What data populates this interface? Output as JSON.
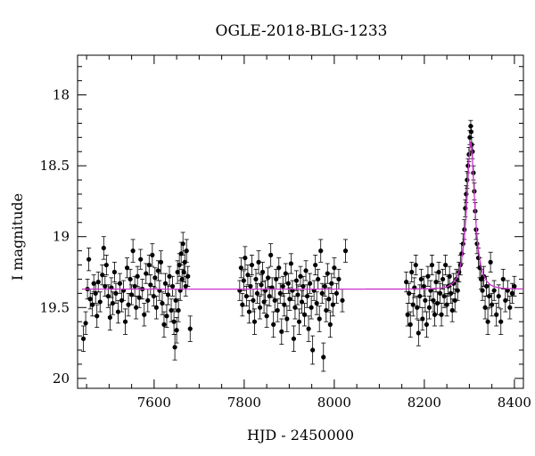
{
  "chart_data": {
    "type": "scatter",
    "title": "OGLE-2018-BLG-1233",
    "xlabel": "HJD - 2450000",
    "ylabel": "I magnitude",
    "xlim": [
      7430,
      8420
    ],
    "ylim": [
      20.07,
      17.72
    ],
    "y_inverted": true,
    "x_ticks": [
      7600,
      7800,
      8000,
      8200,
      8400
    ],
    "y_ticks": [
      18,
      18.5,
      19,
      19.5,
      20
    ],
    "x_tick_labels": [
      "7600",
      "7800",
      "8000",
      "8200",
      "8400"
    ],
    "y_tick_labels": [
      "18",
      "18.5",
      "19",
      "19.5",
      "20"
    ],
    "grid": false,
    "colors": {
      "points": "#000000",
      "model": "#cc33cc"
    },
    "baseline_mag": 19.37,
    "model": {
      "type": "microlensing",
      "t0": 8303,
      "u0": 0.38,
      "tE": 18,
      "fs_frac": 0.9,
      "color": "#cc33cc"
    },
    "series": [
      {
        "points": [
          [
            7443,
            19.72,
            0.09
          ],
          [
            7448,
            19.61,
            0.08
          ],
          [
            7452,
            19.37,
            0.07
          ],
          [
            7455,
            19.16,
            0.08
          ],
          [
            7458,
            19.44,
            0.07
          ],
          [
            7463,
            19.48,
            0.08
          ],
          [
            7466,
            19.33,
            0.06
          ],
          [
            7470,
            19.4,
            0.07
          ],
          [
            7473,
            19.56,
            0.08
          ],
          [
            7476,
            19.32,
            0.07
          ],
          [
            7480,
            19.46,
            0.07
          ],
          [
            7485,
            19.27,
            0.07
          ],
          [
            7488,
            19.08,
            0.08
          ],
          [
            7491,
            19.35,
            0.07
          ],
          [
            7494,
            19.2,
            0.07
          ],
          [
            7498,
            19.42,
            0.08
          ],
          [
            7502,
            19.57,
            0.09
          ],
          [
            7505,
            19.36,
            0.07
          ],
          [
            7508,
            19.47,
            0.08
          ],
          [
            7512,
            19.25,
            0.07
          ],
          [
            7515,
            19.4,
            0.07
          ],
          [
            7520,
            19.53,
            0.08
          ],
          [
            7524,
            19.33,
            0.07
          ],
          [
            7528,
            19.45,
            0.08
          ],
          [
            7532,
            19.38,
            0.07
          ],
          [
            7536,
            19.6,
            0.09
          ],
          [
            7540,
            19.22,
            0.07
          ],
          [
            7543,
            19.48,
            0.08
          ],
          [
            7547,
            19.3,
            0.07
          ],
          [
            7550,
            19.41,
            0.07
          ],
          [
            7553,
            19.1,
            0.08
          ],
          [
            7557,
            19.35,
            0.07
          ],
          [
            7560,
            19.5,
            0.08
          ],
          [
            7563,
            19.28,
            0.07
          ],
          [
            7567,
            19.43,
            0.07
          ],
          [
            7570,
            19.16,
            0.07
          ],
          [
            7574,
            19.37,
            0.07
          ],
          [
            7578,
            19.55,
            0.08
          ],
          [
            7582,
            19.26,
            0.07
          ],
          [
            7586,
            19.45,
            0.08
          ],
          [
            7589,
            19.2,
            0.07
          ],
          [
            7592,
            19.34,
            0.07
          ],
          [
            7596,
            19.13,
            0.08
          ],
          [
            7599,
            19.42,
            0.07
          ],
          [
            7602,
            19.29,
            0.07
          ],
          [
            7605,
            19.5,
            0.08
          ],
          [
            7609,
            19.24,
            0.07
          ],
          [
            7612,
            19.38,
            0.07
          ],
          [
            7615,
            19.18,
            0.08
          ],
          [
            7618,
            19.47,
            0.08
          ],
          [
            7622,
            19.62,
            0.09
          ],
          [
            7625,
            19.33,
            0.07
          ],
          [
            7628,
            19.56,
            0.08
          ],
          [
            7631,
            19.41,
            0.07
          ],
          [
            7634,
            19.28,
            0.07
          ],
          [
            7638,
            19.52,
            0.08
          ],
          [
            7641,
            19.35,
            0.07
          ],
          [
            7644,
            19.6,
            0.09
          ],
          [
            7646,
            19.78,
            0.09
          ],
          [
            7648,
            19.45,
            0.08
          ],
          [
            7650,
            19.66,
            0.09
          ],
          [
            7652,
            19.25,
            0.08
          ],
          [
            7654,
            19.52,
            0.08
          ],
          [
            7656,
            19.2,
            0.08
          ],
          [
            7658,
            19.38,
            0.07
          ],
          [
            7660,
            19.12,
            0.08
          ],
          [
            7662,
            19.3,
            0.07
          ],
          [
            7664,
            19.05,
            0.08
          ],
          [
            7666,
            19.25,
            0.07
          ],
          [
            7668,
            19.18,
            0.08
          ],
          [
            7670,
            19.35,
            0.07
          ],
          [
            7672,
            19.1,
            0.08
          ],
          [
            7675,
            19.28,
            0.07
          ],
          [
            7680,
            19.65,
            0.09
          ],
          [
            7790,
            19.38,
            0.07
          ],
          [
            7793,
            19.22,
            0.07
          ],
          [
            7796,
            19.48,
            0.08
          ],
          [
            7799,
            19.31,
            0.07
          ],
          [
            7802,
            19.15,
            0.08
          ],
          [
            7805,
            19.42,
            0.07
          ],
          [
            7808,
            19.27,
            0.07
          ],
          [
            7811,
            19.53,
            0.08
          ],
          [
            7814,
            19.35,
            0.07
          ],
          [
            7817,
            19.2,
            0.07
          ],
          [
            7820,
            19.45,
            0.08
          ],
          [
            7823,
            19.6,
            0.09
          ],
          [
            7826,
            19.3,
            0.07
          ],
          [
            7829,
            19.4,
            0.07
          ],
          [
            7832,
            19.18,
            0.08
          ],
          [
            7835,
            19.5,
            0.08
          ],
          [
            7838,
            19.34,
            0.07
          ],
          [
            7841,
            19.25,
            0.07
          ],
          [
            7844,
            19.46,
            0.08
          ],
          [
            7847,
            19.38,
            0.07
          ],
          [
            7850,
            19.56,
            0.08
          ],
          [
            7853,
            19.29,
            0.07
          ],
          [
            7856,
            19.42,
            0.07
          ],
          [
            7859,
            19.13,
            0.08
          ],
          [
            7862,
            19.36,
            0.07
          ],
          [
            7865,
            19.62,
            0.09
          ],
          [
            7868,
            19.45,
            0.08
          ],
          [
            7871,
            19.3,
            0.07
          ],
          [
            7874,
            19.52,
            0.08
          ],
          [
            7877,
            19.22,
            0.07
          ],
          [
            7880,
            19.4,
            0.07
          ],
          [
            7883,
            19.67,
            0.09
          ],
          [
            7886,
            19.35,
            0.07
          ],
          [
            7889,
            19.48,
            0.08
          ],
          [
            7892,
            19.26,
            0.07
          ],
          [
            7895,
            19.58,
            0.09
          ],
          [
            7898,
            19.33,
            0.07
          ],
          [
            7901,
            19.44,
            0.08
          ],
          [
            7904,
            19.19,
            0.07
          ],
          [
            7907,
            19.38,
            0.07
          ],
          [
            7910,
            19.72,
            0.09
          ],
          [
            7913,
            19.5,
            0.08
          ],
          [
            7916,
            19.31,
            0.07
          ],
          [
            7919,
            19.41,
            0.07
          ],
          [
            7922,
            19.6,
            0.09
          ],
          [
            7925,
            19.28,
            0.07
          ],
          [
            7928,
            19.46,
            0.08
          ],
          [
            7931,
            19.35,
            0.07
          ],
          [
            7934,
            19.55,
            0.08
          ],
          [
            7937,
            19.24,
            0.07
          ],
          [
            7940,
            19.42,
            0.08
          ],
          [
            7943,
            19.65,
            0.09
          ],
          [
            7946,
            19.33,
            0.07
          ],
          [
            7949,
            19.5,
            0.08
          ],
          [
            7952,
            19.8,
            0.1
          ],
          [
            7955,
            19.38,
            0.07
          ],
          [
            7958,
            19.2,
            0.07
          ],
          [
            7961,
            19.47,
            0.08
          ],
          [
            7964,
            19.3,
            0.07
          ],
          [
            7967,
            19.58,
            0.09
          ],
          [
            7970,
            19.1,
            0.08
          ],
          [
            7973,
            19.4,
            0.07
          ],
          [
            7976,
            19.85,
            0.1
          ],
          [
            7979,
            19.35,
            0.07
          ],
          [
            7982,
            19.52,
            0.08
          ],
          [
            7985,
            19.26,
            0.07
          ],
          [
            7988,
            19.44,
            0.08
          ],
          [
            7991,
            19.62,
            0.09
          ],
          [
            7994,
            19.33,
            0.07
          ],
          [
            7997,
            19.48,
            0.08
          ],
          [
            8000,
            19.22,
            0.07
          ],
          [
            8005,
            19.4,
            0.07
          ],
          [
            8010,
            19.3,
            0.07
          ],
          [
            8018,
            19.45,
            0.08
          ],
          [
            8025,
            19.1,
            0.08
          ],
          [
            8160,
            19.32,
            0.07
          ],
          [
            8163,
            19.55,
            0.08
          ],
          [
            8166,
            19.4,
            0.07
          ],
          [
            8169,
            19.62,
            0.09
          ],
          [
            8172,
            19.25,
            0.07
          ],
          [
            8175,
            19.48,
            0.08
          ],
          [
            8178,
            19.36,
            0.07
          ],
          [
            8181,
            19.2,
            0.07
          ],
          [
            8184,
            19.5,
            0.08
          ],
          [
            8187,
            19.68,
            0.09
          ],
          [
            8190,
            19.42,
            0.08
          ],
          [
            8193,
            19.3,
            0.07
          ],
          [
            8196,
            19.58,
            0.08
          ],
          [
            8199,
            19.35,
            0.07
          ],
          [
            8202,
            19.45,
            0.08
          ],
          [
            8205,
            19.62,
            0.09
          ],
          [
            8208,
            19.28,
            0.07
          ],
          [
            8211,
            19.5,
            0.08
          ],
          [
            8214,
            19.38,
            0.07
          ],
          [
            8217,
            19.2,
            0.07
          ],
          [
            8220,
            19.45,
            0.08
          ],
          [
            8223,
            19.55,
            0.08
          ],
          [
            8226,
            19.32,
            0.07
          ],
          [
            8229,
            19.47,
            0.08
          ],
          [
            8232,
            19.25,
            0.07
          ],
          [
            8235,
            19.4,
            0.07
          ],
          [
            8238,
            19.55,
            0.08
          ],
          [
            8241,
            19.3,
            0.07
          ],
          [
            8244,
            19.42,
            0.08
          ],
          [
            8247,
            19.2,
            0.07
          ],
          [
            8250,
            19.48,
            0.08
          ],
          [
            8253,
            19.35,
            0.07
          ],
          [
            8256,
            19.28,
            0.07
          ],
          [
            8259,
            19.4,
            0.07
          ],
          [
            8262,
            19.52,
            0.08
          ],
          [
            8265,
            19.33,
            0.07
          ],
          [
            8268,
            19.45,
            0.08
          ],
          [
            8271,
            19.3,
            0.07
          ],
          [
            8274,
            19.38,
            0.07
          ],
          [
            8277,
            19.25,
            0.07
          ],
          [
            8280,
            19.2,
            0.07
          ],
          [
            8283,
            19.12,
            0.07
          ],
          [
            8286,
            19.05,
            0.07
          ],
          [
            8289,
            18.95,
            0.07
          ],
          [
            8291,
            18.8,
            0.06
          ],
          [
            8293,
            18.7,
            0.06
          ],
          [
            8295,
            18.6,
            0.06
          ],
          [
            8297,
            18.5,
            0.05
          ],
          [
            8299,
            18.42,
            0.05
          ],
          [
            8301,
            18.3,
            0.05
          ],
          [
            8303,
            18.22,
            0.04
          ],
          [
            8304,
            18.26,
            0.04
          ],
          [
            8305,
            18.35,
            0.05
          ],
          [
            8307,
            18.4,
            0.05
          ],
          [
            8309,
            18.55,
            0.05
          ],
          [
            8311,
            18.68,
            0.06
          ],
          [
            8313,
            18.82,
            0.06
          ],
          [
            8315,
            18.95,
            0.07
          ],
          [
            8317,
            19.05,
            0.07
          ],
          [
            8320,
            19.15,
            0.07
          ],
          [
            8323,
            19.22,
            0.07
          ],
          [
            8326,
            19.3,
            0.07
          ],
          [
            8329,
            19.38,
            0.07
          ],
          [
            8332,
            19.28,
            0.07
          ],
          [
            8335,
            19.5,
            0.08
          ],
          [
            8338,
            19.35,
            0.07
          ],
          [
            8341,
            19.6,
            0.09
          ],
          [
            8344,
            19.42,
            0.08
          ],
          [
            8347,
            19.18,
            0.07
          ],
          [
            8350,
            19.48,
            0.08
          ],
          [
            8355,
            19.38,
            0.07
          ],
          [
            8360,
            19.55,
            0.08
          ],
          [
            8365,
            19.42,
            0.08
          ],
          [
            8370,
            19.6,
            0.09
          ],
          [
            8375,
            19.3,
            0.07
          ],
          [
            8380,
            19.45,
            0.08
          ],
          [
            8385,
            19.38,
            0.07
          ],
          [
            8390,
            19.5,
            0.08
          ],
          [
            8395,
            19.4,
            0.07
          ],
          [
            8400,
            19.35,
            0.07
          ]
        ]
      }
    ]
  }
}
